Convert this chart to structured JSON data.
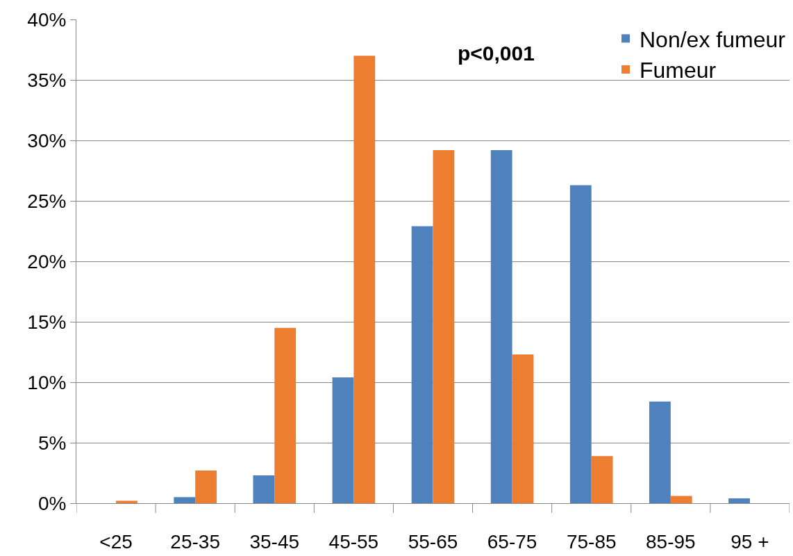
{
  "chart_data": {
    "type": "bar",
    "categories": [
      "<25",
      "25-35",
      "35-45",
      "45-55",
      "55-65",
      "65-75",
      "75-85",
      "85-95",
      "95 +"
    ],
    "series": [
      {
        "name": "Non/ex fumeur",
        "color": "#4f81bd",
        "values": [
          0,
          0.5,
          2.3,
          10.4,
          22.9,
          29.2,
          26.3,
          8.4,
          0.4
        ]
      },
      {
        "name": "Fumeur",
        "color": "#ed7d31",
        "values": [
          0.2,
          2.7,
          14.5,
          37.0,
          29.2,
          12.3,
          3.9,
          0.6,
          0
        ]
      }
    ],
    "ylim": [
      0,
      40
    ],
    "yticks": [
      {
        "value": 0,
        "label": "0%"
      },
      {
        "value": 5,
        "label": "5%"
      },
      {
        "value": 10,
        "label": "10%"
      },
      {
        "value": 15,
        "label": "15%"
      },
      {
        "value": 20,
        "label": "20%"
      },
      {
        "value": 25,
        "label": "25%"
      },
      {
        "value": 30,
        "label": "30%"
      },
      {
        "value": 35,
        "label": "35%"
      },
      {
        "value": 40,
        "label": "40%"
      }
    ],
    "grid": "y",
    "legend": "top right",
    "annotations": [
      "p<0,001"
    ]
  }
}
